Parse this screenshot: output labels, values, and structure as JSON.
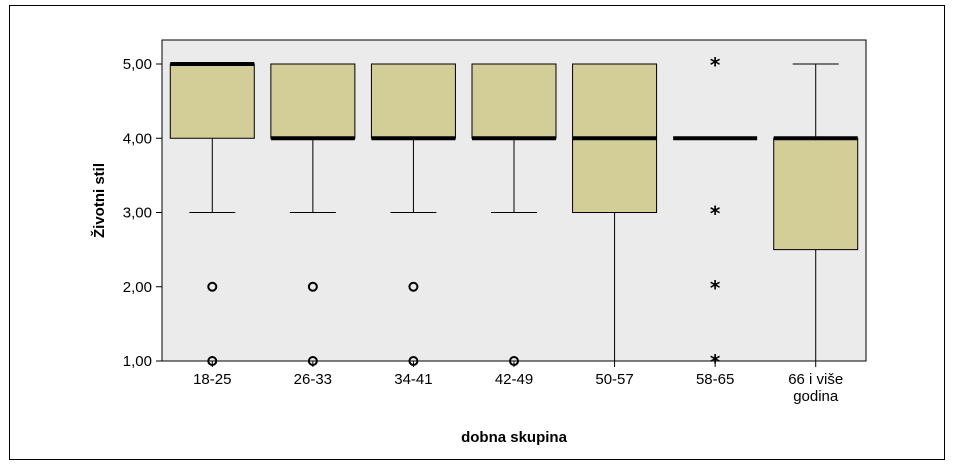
{
  "chart_data": {
    "type": "boxplot",
    "xlabel": "dobna skupina",
    "ylabel": "Životni stil",
    "ylim": [
      1,
      5
    ],
    "y_ticks": [
      "1,00",
      "2,00",
      "3,00",
      "4,00",
      "5,00"
    ],
    "y_tick_values": [
      1,
      2,
      3,
      4,
      5
    ],
    "grid": false,
    "box_color": "#d3ce97",
    "plot_background": "#ebebeb",
    "categories": [
      {
        "label": [
          "18-25"
        ],
        "whisker_low": 3,
        "q1": 4,
        "median": 5,
        "q3": 5,
        "whisker_high": 5,
        "outliers": [
          2,
          1
        ],
        "extremes": []
      },
      {
        "label": [
          "26-33"
        ],
        "whisker_low": 3,
        "q1": 4,
        "median": 4,
        "q3": 5,
        "whisker_high": 5,
        "outliers": [
          2,
          1
        ],
        "extremes": []
      },
      {
        "label": [
          "34-41"
        ],
        "whisker_low": 3,
        "q1": 4,
        "median": 4,
        "q3": 5,
        "whisker_high": 5,
        "outliers": [
          2,
          1
        ],
        "extremes": []
      },
      {
        "label": [
          "42-49"
        ],
        "whisker_low": 3,
        "q1": 4,
        "median": 4,
        "q3": 5,
        "whisker_high": 5,
        "outliers": [
          1
        ],
        "extremes": []
      },
      {
        "label": [
          "50-57"
        ],
        "whisker_low": 1,
        "q1": 3,
        "median": 4,
        "q3": 5,
        "whisker_high": 5,
        "outliers": [],
        "extremes": []
      },
      {
        "label": [
          "58-65"
        ],
        "whisker_low": 4,
        "q1": 4,
        "median": 4,
        "q3": 4,
        "whisker_high": 4,
        "outliers": [],
        "extremes": [
          5,
          3,
          2,
          1
        ]
      },
      {
        "label": [
          "66 i više",
          "godina"
        ],
        "whisker_low": 1,
        "q1": 2.5,
        "median": 4,
        "q3": 4,
        "whisker_high": 5,
        "outliers": [],
        "extremes": []
      }
    ]
  }
}
